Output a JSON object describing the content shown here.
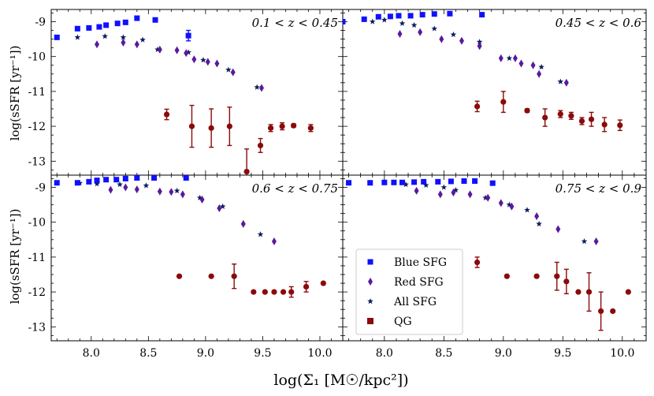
{
  "chart_data": {
    "type": "scatter",
    "xlabel": "log(Σ₁ [M☉/kpc²])",
    "ylabel": "log(sSFR [yr⁻¹])",
    "xlim": [
      7.65,
      10.2
    ],
    "ylim": [
      -13.4,
      -8.65
    ],
    "xticks": [
      "8.0",
      "8.5",
      "9.0",
      "9.5",
      "10.0"
    ],
    "yticks": [
      "-9",
      "-10",
      "-11",
      "-12",
      "-13"
    ],
    "xtick_values": [
      8.0,
      8.5,
      9.0,
      9.5,
      10.0
    ],
    "ytick_values": [
      -9,
      -10,
      -11,
      -12,
      -13
    ],
    "legend": {
      "position": "lower-left of bottom-right panel",
      "entries": [
        {
          "series": "blue",
          "label": "Blue SFG"
        },
        {
          "series": "red",
          "label": "Red SFG"
        },
        {
          "series": "all",
          "label": "All SFG"
        },
        {
          "series": "qg",
          "label": "QG"
        }
      ]
    },
    "colors": {
      "blue": "#1010ff",
      "red": "#5a1a9c",
      "all": "#0d1f5c",
      "qg": "#8b0a0a"
    },
    "panels": [
      {
        "title": "0.1 < z < 0.45",
        "series": {
          "blue": [
            [
              7.7,
              -9.45
            ],
            [
              7.88,
              -9.2
            ],
            [
              7.98,
              -9.18
            ],
            [
              8.07,
              -9.15
            ],
            [
              8.13,
              -9.1
            ],
            [
              8.23,
              -9.05
            ],
            [
              8.3,
              -9.02
            ],
            [
              8.4,
              -8.9
            ],
            [
              8.56,
              -8.95
            ],
            [
              8.85,
              -9.4,
              0.15
            ]
          ],
          "red": [
            [
              8.05,
              -9.65
            ],
            [
              8.28,
              -9.6
            ],
            [
              8.4,
              -9.65
            ],
            [
              8.6,
              -9.8
            ],
            [
              8.75,
              -9.82
            ],
            [
              8.83,
              -9.9
            ],
            [
              8.9,
              -10.08
            ],
            [
              9.02,
              -10.15
            ],
            [
              9.1,
              -10.2
            ],
            [
              9.24,
              -10.45
            ],
            [
              9.49,
              -10.9
            ]
          ],
          "all": [
            [
              7.88,
              -9.45
            ],
            [
              8.12,
              -9.42
            ],
            [
              8.28,
              -9.45
            ],
            [
              8.45,
              -9.52
            ],
            [
              8.58,
              -9.8
            ],
            [
              8.85,
              -9.88
            ],
            [
              8.98,
              -10.1
            ],
            [
              9.2,
              -10.38
            ],
            [
              9.45,
              -10.88
            ]
          ],
          "qg": [
            [
              8.66,
              -11.66,
              0.15
            ],
            [
              8.88,
              -12.0,
              0.6
            ],
            [
              9.05,
              -12.05,
              0.55
            ],
            [
              9.21,
              -12.0,
              0.55
            ],
            [
              9.36,
              -13.3,
              0.65
            ],
            [
              9.48,
              -12.55,
              0.2
            ],
            [
              9.57,
              -12.05,
              0.1
            ],
            [
              9.67,
              -12.0,
              0.1
            ],
            [
              9.77,
              -11.98,
              0.05
            ],
            [
              9.92,
              -12.05,
              0.1
            ]
          ]
        }
      },
      {
        "title": "0.45 < z < 0.6",
        "series": {
          "blue": [
            [
              7.65,
              -9.0
            ],
            [
              7.83,
              -8.93
            ],
            [
              7.95,
              -8.86
            ],
            [
              8.05,
              -8.85
            ],
            [
              8.12,
              -8.83
            ],
            [
              8.22,
              -8.83
            ],
            [
              8.32,
              -8.8
            ],
            [
              8.42,
              -8.78
            ],
            [
              8.55,
              -8.77
            ],
            [
              8.82,
              -8.8
            ]
          ],
          "red": [
            [
              8.13,
              -9.35
            ],
            [
              8.3,
              -9.3
            ],
            [
              8.48,
              -9.5
            ],
            [
              8.65,
              -9.55
            ],
            [
              8.8,
              -9.7
            ],
            [
              8.98,
              -10.05
            ],
            [
              9.1,
              -10.05
            ],
            [
              9.15,
              -10.2
            ],
            [
              9.25,
              -10.25
            ],
            [
              9.3,
              -10.5
            ],
            [
              9.53,
              -10.75
            ]
          ],
          "all": [
            [
              7.9,
              -9.0
            ],
            [
              8.0,
              -8.95
            ],
            [
              8.15,
              -9.05
            ],
            [
              8.25,
              -9.1
            ],
            [
              8.42,
              -9.2
            ],
            [
              8.58,
              -9.37
            ],
            [
              8.8,
              -9.58
            ],
            [
              9.05,
              -10.05
            ],
            [
              9.32,
              -10.3
            ],
            [
              9.48,
              -10.72
            ]
          ],
          "qg": [
            [
              8.78,
              -11.43,
              0.15
            ],
            [
              9.0,
              -11.3,
              0.3
            ],
            [
              9.2,
              -11.55,
              0.05
            ],
            [
              9.35,
              -11.75,
              0.25
            ],
            [
              9.48,
              -11.65,
              0.1
            ],
            [
              9.57,
              -11.7,
              0.1
            ],
            [
              9.66,
              -11.85,
              0.1
            ],
            [
              9.74,
              -11.8,
              0.2
            ],
            [
              9.85,
              -11.95,
              0.2
            ],
            [
              9.98,
              -11.97,
              0.15
            ]
          ]
        }
      },
      {
        "title": "0.6 < z < 0.75",
        "series": {
          "blue": [
            [
              7.7,
              -8.87
            ],
            [
              7.88,
              -8.87
            ],
            [
              7.98,
              -8.84
            ],
            [
              8.05,
              -8.8
            ],
            [
              8.13,
              -8.78
            ],
            [
              8.22,
              -8.78
            ],
            [
              8.3,
              -8.75
            ],
            [
              8.4,
              -8.73
            ],
            [
              8.55,
              -8.73
            ],
            [
              8.83,
              -8.73
            ]
          ],
          "red": [
            [
              8.17,
              -9.07
            ],
            [
              8.3,
              -9.0
            ],
            [
              8.4,
              -9.06
            ],
            [
              8.6,
              -9.12
            ],
            [
              8.7,
              -9.13
            ],
            [
              8.8,
              -9.2
            ],
            [
              8.97,
              -9.35
            ],
            [
              9.12,
              -9.6
            ],
            [
              9.33,
              -10.05
            ],
            [
              9.6,
              -10.55
            ]
          ],
          "all": [
            [
              7.9,
              -8.88
            ],
            [
              8.05,
              -8.9
            ],
            [
              8.25,
              -8.92
            ],
            [
              8.48,
              -8.95
            ],
            [
              8.75,
              -9.1
            ],
            [
              8.95,
              -9.3
            ],
            [
              9.15,
              -9.55
            ],
            [
              9.48,
              -10.35
            ]
          ],
          "qg": [
            [
              8.77,
              -11.55
            ],
            [
              9.05,
              -11.55
            ],
            [
              9.25,
              -11.55,
              0.35
            ],
            [
              9.42,
              -12.0
            ],
            [
              9.52,
              -12.0
            ],
            [
              9.6,
              -12.0
            ],
            [
              9.68,
              -12.0
            ],
            [
              9.75,
              -12.0,
              0.15
            ],
            [
              9.88,
              -11.85,
              0.15
            ],
            [
              10.03,
              -11.75
            ]
          ]
        }
      },
      {
        "title": "0.75 < z < 0.9",
        "series": {
          "blue": [
            [
              7.7,
              -8.87
            ],
            [
              7.88,
              -8.87
            ],
            [
              8.0,
              -8.86
            ],
            [
              8.08,
              -8.86
            ],
            [
              8.15,
              -8.86
            ],
            [
              8.25,
              -8.85
            ],
            [
              8.33,
              -8.84
            ],
            [
              8.45,
              -8.84
            ],
            [
              8.56,
              -8.83
            ],
            [
              8.67,
              -8.82
            ],
            [
              8.76,
              -8.82
            ],
            [
              8.91,
              -8.88
            ]
          ],
          "red": [
            [
              8.27,
              -9.1
            ],
            [
              8.47,
              -9.2
            ],
            [
              8.58,
              -9.15
            ],
            [
              8.72,
              -9.2
            ],
            [
              8.87,
              -9.3
            ],
            [
              8.98,
              -9.45
            ],
            [
              9.07,
              -9.55
            ],
            [
              9.28,
              -9.83
            ],
            [
              9.46,
              -10.2
            ],
            [
              9.78,
              -10.55
            ]
          ],
          "all": [
            [
              7.88,
              -8.88
            ],
            [
              8.18,
              -8.92
            ],
            [
              8.35,
              -8.94
            ],
            [
              8.5,
              -9.0
            ],
            [
              8.6,
              -9.08
            ],
            [
              8.85,
              -9.3
            ],
            [
              9.05,
              -9.5
            ],
            [
              9.2,
              -9.65
            ],
            [
              9.3,
              -10.05
            ],
            [
              9.68,
              -10.55
            ]
          ],
          "qg": [
            [
              8.78,
              -11.15,
              0.15
            ],
            [
              9.03,
              -11.55
            ],
            [
              9.28,
              -11.55
            ],
            [
              9.45,
              -11.55,
              0.4
            ],
            [
              9.53,
              -11.7,
              0.35
            ],
            [
              9.63,
              -12.0
            ],
            [
              9.72,
              -12.0,
              0.55
            ],
            [
              9.82,
              -12.55,
              0.55
            ],
            [
              9.92,
              -12.55
            ],
            [
              10.05,
              -12.0
            ]
          ]
        }
      }
    ]
  }
}
